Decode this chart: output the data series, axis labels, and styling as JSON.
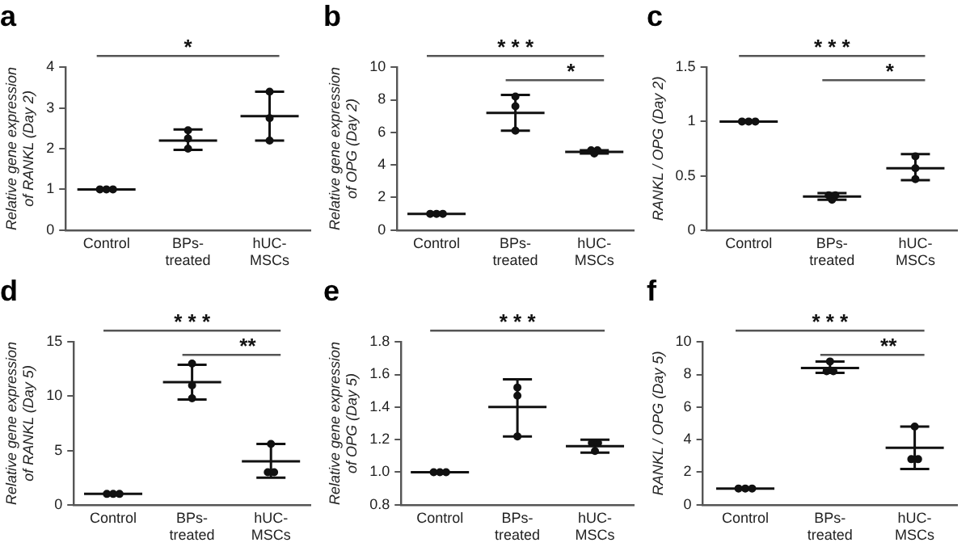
{
  "chart_data": [
    {
      "type": "box",
      "title": "a",
      "ylabel": "Relative gene expression\nof RANKL (Day 2)",
      "categories": [
        "Control",
        "BPs-\ntreated",
        "hUC-\nMSCs"
      ],
      "ylim": [
        0,
        4
      ],
      "yticks": [
        0,
        1,
        2,
        3,
        4
      ],
      "annotations": [
        "*"
      ],
      "series": [
        {
          "type": "box",
          "color": "#111111",
          "boxes": [
            {
              "low": 1,
              "q1": 1,
              "median": 1,
              "q3": 1,
              "high": 1
            },
            {
              "low": 1.97,
              "q1": 2.2,
              "median": 2.2,
              "q3": 2.2,
              "high": 2.47
            },
            {
              "low": 2.2,
              "q1": 2.8,
              "median": 2.8,
              "q3": 2.8,
              "high": 3.4
            }
          ]
        },
        {
          "type": "scatter",
          "marker": "circle",
          "color": "#111111",
          "x": [
            "Control",
            "Control",
            "Control",
            "BPs-\ntreated",
            "BPs-\ntreated",
            "BPs-\ntreated",
            "hUC-\nMSCs",
            "hUC-\nMSCs",
            "hUC-\nMSCs"
          ],
          "values": [
            1,
            1,
            1,
            2.45,
            2.25,
            2.0,
            3.4,
            2.75,
            2.2
          ]
        }
      ]
    },
    {
      "type": "box",
      "title": "b",
      "ylabel": "Relative gene expression\nof OPG (Day 2)",
      "categories": [
        "Control",
        "BPs-\ntreated",
        "hUC-\nMSCs"
      ],
      "ylim": [
        0,
        10
      ],
      "yticks": [
        0,
        2,
        4,
        6,
        8,
        10
      ],
      "annotations": [
        "* * *",
        "*"
      ],
      "series": [
        {
          "type": "box",
          "color": "#111111",
          "boxes": [
            {
              "low": 1,
              "q1": 1,
              "median": 1,
              "q3": 1,
              "high": 1
            },
            {
              "low": 6.1,
              "q1": 7.2,
              "median": 7.2,
              "q3": 7.2,
              "high": 8.3
            },
            {
              "low": 4.7,
              "q1": 4.8,
              "median": 4.8,
              "q3": 4.8,
              "high": 4.9
            }
          ]
        },
        {
          "type": "scatter",
          "marker": "circle",
          "color": "#111111",
          "x": [
            "Control",
            "Control",
            "Control",
            "BPs-\ntreated",
            "BPs-\ntreated",
            "BPs-\ntreated",
            "hUC-\nMSCs",
            "hUC-\nMSCs",
            "hUC-\nMSCs"
          ],
          "values": [
            1,
            1,
            1,
            8.2,
            7.6,
            6.1,
            4.9,
            4.9,
            4.7
          ]
        }
      ]
    },
    {
      "type": "box",
      "title": "c",
      "ylabel": "RANKL / OPG (Day 2)",
      "categories": [
        "Control",
        "BPs-\ntreated",
        "hUC-\nMSCs"
      ],
      "ylim": [
        0,
        1.5
      ],
      "yticks": [
        0,
        0.5,
        1,
        1.5
      ],
      "annotations": [
        "* * *",
        "*"
      ],
      "series": [
        {
          "type": "box",
          "color": "#111111",
          "boxes": [
            {
              "low": 1,
              "q1": 1,
              "median": 1,
              "q3": 1,
              "high": 1
            },
            {
              "low": 0.28,
              "q1": 0.31,
              "median": 0.31,
              "q3": 0.31,
              "high": 0.34
            },
            {
              "low": 0.46,
              "q1": 0.57,
              "median": 0.57,
              "q3": 0.57,
              "high": 0.7
            }
          ]
        },
        {
          "type": "scatter",
          "marker": "circle",
          "color": "#111111",
          "x": [
            "Control",
            "Control",
            "Control",
            "BPs-\ntreated",
            "BPs-\ntreated",
            "BPs-\ntreated",
            "hUC-\nMSCs",
            "hUC-\nMSCs",
            "hUC-\nMSCs"
          ],
          "values": [
            1,
            1,
            1,
            0.32,
            0.32,
            0.28,
            0.68,
            0.57,
            0.47
          ]
        }
      ]
    },
    {
      "type": "box",
      "title": "d",
      "ylabel": "Relative gene expression\nof RANKL (Day 5)",
      "categories": [
        "Control",
        "BPs-\ntreated",
        "hUC-\nMSCs"
      ],
      "ylim": [
        0,
        15
      ],
      "yticks": [
        0,
        5,
        10,
        15
      ],
      "annotations": [
        "* * *",
        "**"
      ],
      "series": [
        {
          "type": "box",
          "color": "#111111",
          "boxes": [
            {
              "low": 1,
              "q1": 1,
              "median": 1,
              "q3": 1,
              "high": 1
            },
            {
              "low": 9.7,
              "q1": 11.3,
              "median": 11.3,
              "q3": 11.3,
              "high": 12.9
            },
            {
              "low": 2.5,
              "q1": 4,
              "median": 4,
              "q3": 4,
              "high": 5.6
            }
          ]
        },
        {
          "type": "scatter",
          "marker": "circle",
          "color": "#111111",
          "x": [
            "Control",
            "Control",
            "Control",
            "BPs-\ntreated",
            "BPs-\ntreated",
            "BPs-\ntreated",
            "hUC-\nMSCs",
            "hUC-\nMSCs",
            "hUC-\nMSCs"
          ],
          "values": [
            1,
            1,
            1,
            13,
            11,
            9.8,
            5.6,
            3.0,
            3.0
          ]
        }
      ]
    },
    {
      "type": "box",
      "title": "e",
      "ylabel": "Relative gene expression\nof OPG (Day 5)",
      "categories": [
        "Control",
        "BPs-\ntreated",
        "hUC-\nMSCs"
      ],
      "ylim": [
        0.8,
        1.8
      ],
      "yticks": [
        {
          "value": 0.8,
          "label": "0.8"
        },
        {
          "value": 1,
          "label": "1.0"
        },
        {
          "value": 1.2,
          "label": "1.2"
        },
        {
          "value": 1.4,
          "label": "1.4"
        },
        {
          "value": 1.6,
          "label": "1.6"
        },
        {
          "value": 1.8,
          "label": "1.8"
        }
      ],
      "annotations": [
        "* * *"
      ],
      "series": [
        {
          "type": "box",
          "color": "#111111",
          "boxes": [
            {
              "low": 1,
              "q1": 1,
              "median": 1,
              "q3": 1,
              "high": 1
            },
            {
              "low": 1.22,
              "q1": 1.4,
              "median": 1.4,
              "q3": 1.4,
              "high": 1.57
            },
            {
              "low": 1.12,
              "q1": 1.16,
              "median": 1.16,
              "q3": 1.16,
              "high": 1.2
            }
          ]
        },
        {
          "type": "scatter",
          "marker": "circle",
          "color": "#111111",
          "x": [
            "Control",
            "Control",
            "Control",
            "BPs-\ntreated",
            "BPs-\ntreated",
            "BPs-\ntreated",
            "hUC-\nMSCs",
            "hUC-\nMSCs",
            "hUC-\nMSCs"
          ],
          "values": [
            1,
            1,
            1,
            1.52,
            1.47,
            1.22,
            1.18,
            1.18,
            1.13
          ]
        }
      ]
    },
    {
      "type": "box",
      "title": "f",
      "ylabel": "RANKL / OPG (Day 5)",
      "categories": [
        "Control",
        "BPs-\ntreated",
        "hUC-\nMSCs"
      ],
      "ylim": [
        0,
        10
      ],
      "yticks": [
        0,
        2,
        4,
        6,
        8,
        10
      ],
      "annotations": [
        "* * *",
        "**"
      ],
      "series": [
        {
          "type": "box",
          "color": "#111111",
          "boxes": [
            {
              "low": 1,
              "q1": 1,
              "median": 1,
              "q3": 1,
              "high": 1
            },
            {
              "low": 8.1,
              "q1": 8.4,
              "median": 8.4,
              "q3": 8.4,
              "high": 8.8
            },
            {
              "low": 2.2,
              "q1": 3.5,
              "median": 3.5,
              "q3": 3.5,
              "high": 4.8
            }
          ]
        },
        {
          "type": "scatter",
          "marker": "circle",
          "color": "#111111",
          "x": [
            "Control",
            "Control",
            "Control",
            "BPs-\ntreated",
            "BPs-\ntreated",
            "BPs-\ntreated",
            "hUC-\nMSCs",
            "hUC-\nMSCs",
            "hUC-\nMSCs"
          ],
          "values": [
            1,
            1,
            1,
            8.8,
            8.2,
            8.2,
            4.8,
            2.8,
            2.8
          ]
        }
      ]
    }
  ]
}
